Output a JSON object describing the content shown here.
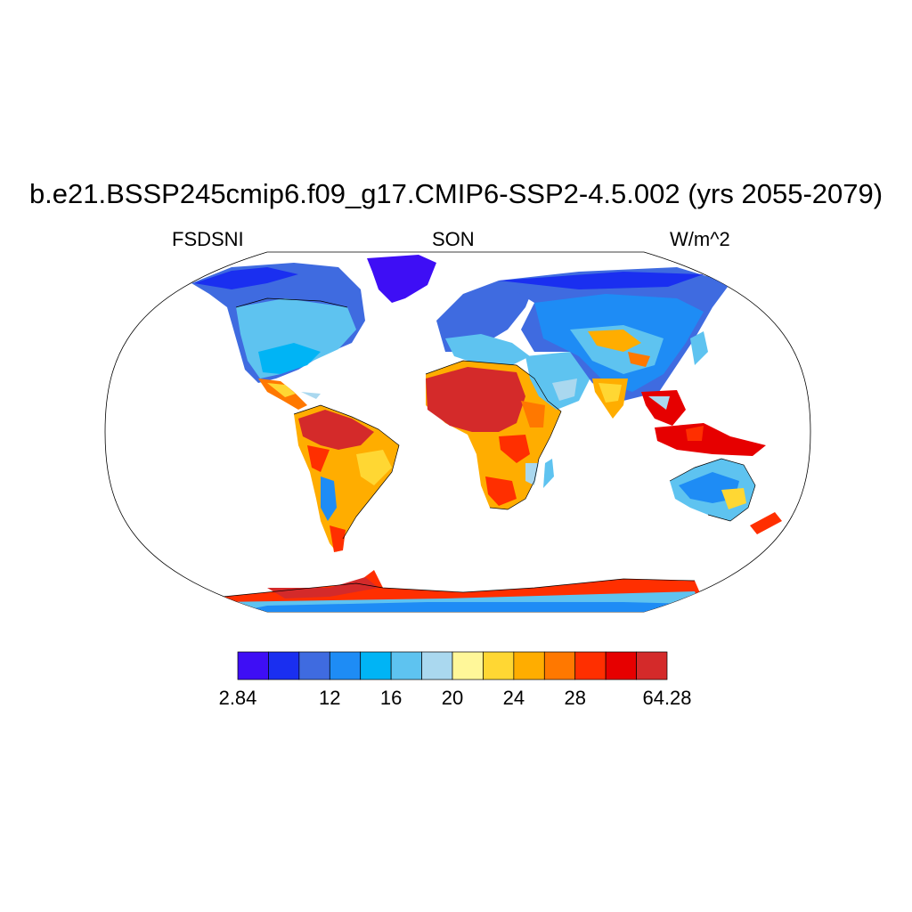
{
  "figure": {
    "title": "b.e21.BSSP245cmip6.f09_g17.CMIP6-SSP2-4.5.002 (yrs 2055-2079)",
    "left_string": "FSDSNI",
    "center_string": "SON",
    "right_string": "W/m^2"
  },
  "colorbar": {
    "colors": [
      "#3e0ef5",
      "#1a2ff0",
      "#3f6be0",
      "#1e8cf5",
      "#00b4f5",
      "#5ec3f0",
      "#aad8ef",
      "#fff799",
      "#ffd733",
      "#ffad00",
      "#ff7800",
      "#ff2f00",
      "#e60000",
      "#d42a2a"
    ],
    "labels": [
      {
        "text": "2.84",
        "boundary": 0
      },
      {
        "text": "12",
        "boundary": 3
      },
      {
        "text": "16",
        "boundary": 5
      },
      {
        "text": "20",
        "boundary": 7
      },
      {
        "text": "24",
        "boundary": 9
      },
      {
        "text": "28",
        "boundary": 11
      },
      {
        "text": "64.28",
        "boundary": 14
      }
    ]
  }
}
